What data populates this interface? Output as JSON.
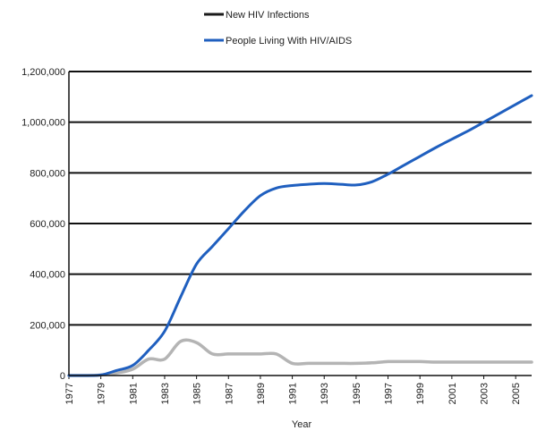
{
  "chart_data": {
    "type": "line",
    "title": "",
    "xlabel": "Year",
    "ylabel": "",
    "xlim": [
      1977,
      2006
    ],
    "ylim": [
      0,
      1200000
    ],
    "x_tick_labels": [
      "1977",
      "1979",
      "1981",
      "1983",
      "1985",
      "1987",
      "1989",
      "1991",
      "1993",
      "1995",
      "1997",
      "1999",
      "2001",
      "2003",
      "2005"
    ],
    "y_tick_labels": [
      "0",
      "200,000",
      "400,000",
      "600,000",
      "800,000",
      "1,000,000",
      "1,200,000"
    ],
    "y_ticks": [
      0,
      200000,
      400000,
      600000,
      800000,
      1000000,
      1200000
    ],
    "grid": "horizontal",
    "legend_position": "top-center",
    "series": [
      {
        "name": "New HIV Infections",
        "legend_color": "#1a1a1a",
        "line_color": "#b4b4b4",
        "points": [
          [
            1977,
            0
          ],
          [
            1978,
            0
          ],
          [
            1979,
            2000
          ],
          [
            1980,
            10000
          ],
          [
            1981,
            25000
          ],
          [
            1982,
            65000
          ],
          [
            1983,
            65000
          ],
          [
            1984,
            135000
          ],
          [
            1985,
            130000
          ],
          [
            1986,
            85000
          ],
          [
            1987,
            85000
          ],
          [
            1988,
            85000
          ],
          [
            1989,
            85000
          ],
          [
            1990,
            85000
          ],
          [
            1991,
            48000
          ],
          [
            1992,
            48000
          ],
          [
            1993,
            48000
          ],
          [
            1994,
            48000
          ],
          [
            1995,
            48000
          ],
          [
            1996,
            50000
          ],
          [
            1997,
            55000
          ],
          [
            1998,
            55000
          ],
          [
            1999,
            55000
          ],
          [
            2000,
            53000
          ],
          [
            2001,
            53000
          ],
          [
            2002,
            53000
          ],
          [
            2003,
            53000
          ],
          [
            2004,
            53000
          ],
          [
            2005,
            53000
          ],
          [
            2006,
            53000
          ]
        ]
      },
      {
        "name": "People Living With HIV/AIDS",
        "legend_color": "#1f5fbf",
        "line_color": "#1f5fbf",
        "points": [
          [
            1977,
            0
          ],
          [
            1978,
            0
          ],
          [
            1979,
            2000
          ],
          [
            1980,
            20000
          ],
          [
            1981,
            40000
          ],
          [
            1982,
            100000
          ],
          [
            1983,
            175000
          ],
          [
            1984,
            310000
          ],
          [
            1985,
            440000
          ],
          [
            1986,
            510000
          ],
          [
            1987,
            580000
          ],
          [
            1988,
            650000
          ],
          [
            1989,
            710000
          ],
          [
            1990,
            740000
          ],
          [
            1991,
            750000
          ],
          [
            1992,
            755000
          ],
          [
            1993,
            758000
          ],
          [
            1994,
            755000
          ],
          [
            1995,
            752000
          ],
          [
            1996,
            765000
          ],
          [
            1997,
            795000
          ],
          [
            1998,
            830000
          ],
          [
            1999,
            865000
          ],
          [
            2000,
            900000
          ],
          [
            2001,
            933000
          ],
          [
            2002,
            965000
          ],
          [
            2003,
            1000000
          ],
          [
            2004,
            1035000
          ],
          [
            2005,
            1070000
          ],
          [
            2006,
            1105000
          ]
        ]
      }
    ]
  }
}
